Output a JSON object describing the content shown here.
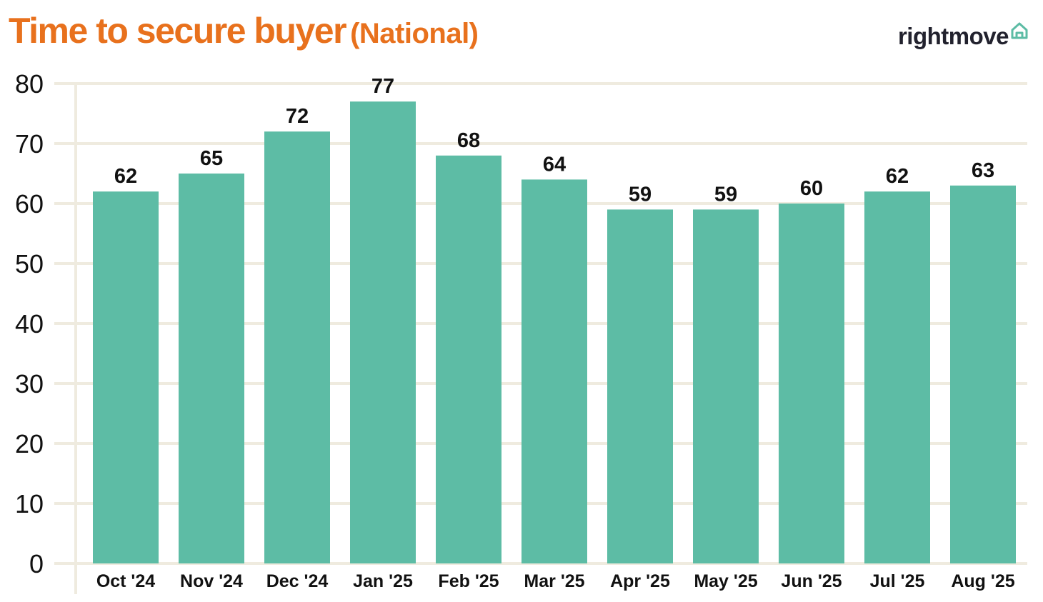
{
  "title": {
    "main": "Time to secure buyer",
    "sub": "(National)"
  },
  "logo": {
    "text": "rightmove",
    "icon": "house-outline-icon"
  },
  "colors": {
    "title": "#e8711d",
    "bar": "#5dbca5",
    "grid": "#efebdf",
    "text": "#111111",
    "logo_text": "#22222e",
    "logo_icon": "#5dbca5"
  },
  "chart_data": {
    "type": "bar",
    "categories": [
      "Oct '24",
      "Nov '24",
      "Dec '24",
      "Jan '25",
      "Feb '25",
      "Mar '25",
      "Apr '25",
      "May '25",
      "Jun '25",
      "Jul '25",
      "Aug '25"
    ],
    "values": [
      62,
      65,
      72,
      77,
      68,
      64,
      59,
      59,
      60,
      62,
      63
    ],
    "data_labels": [
      "62",
      "65",
      "72",
      "77",
      "68",
      "64",
      "59",
      "59",
      "60",
      "62",
      "63"
    ],
    "y_ticks": [
      0,
      10,
      20,
      30,
      40,
      50,
      60,
      70,
      80
    ],
    "ylim": [
      0,
      80
    ],
    "grid": true,
    "legend": "none",
    "title": "Time to secure buyer",
    "subtitle": "(National)",
    "xlabel": "",
    "ylabel": ""
  }
}
